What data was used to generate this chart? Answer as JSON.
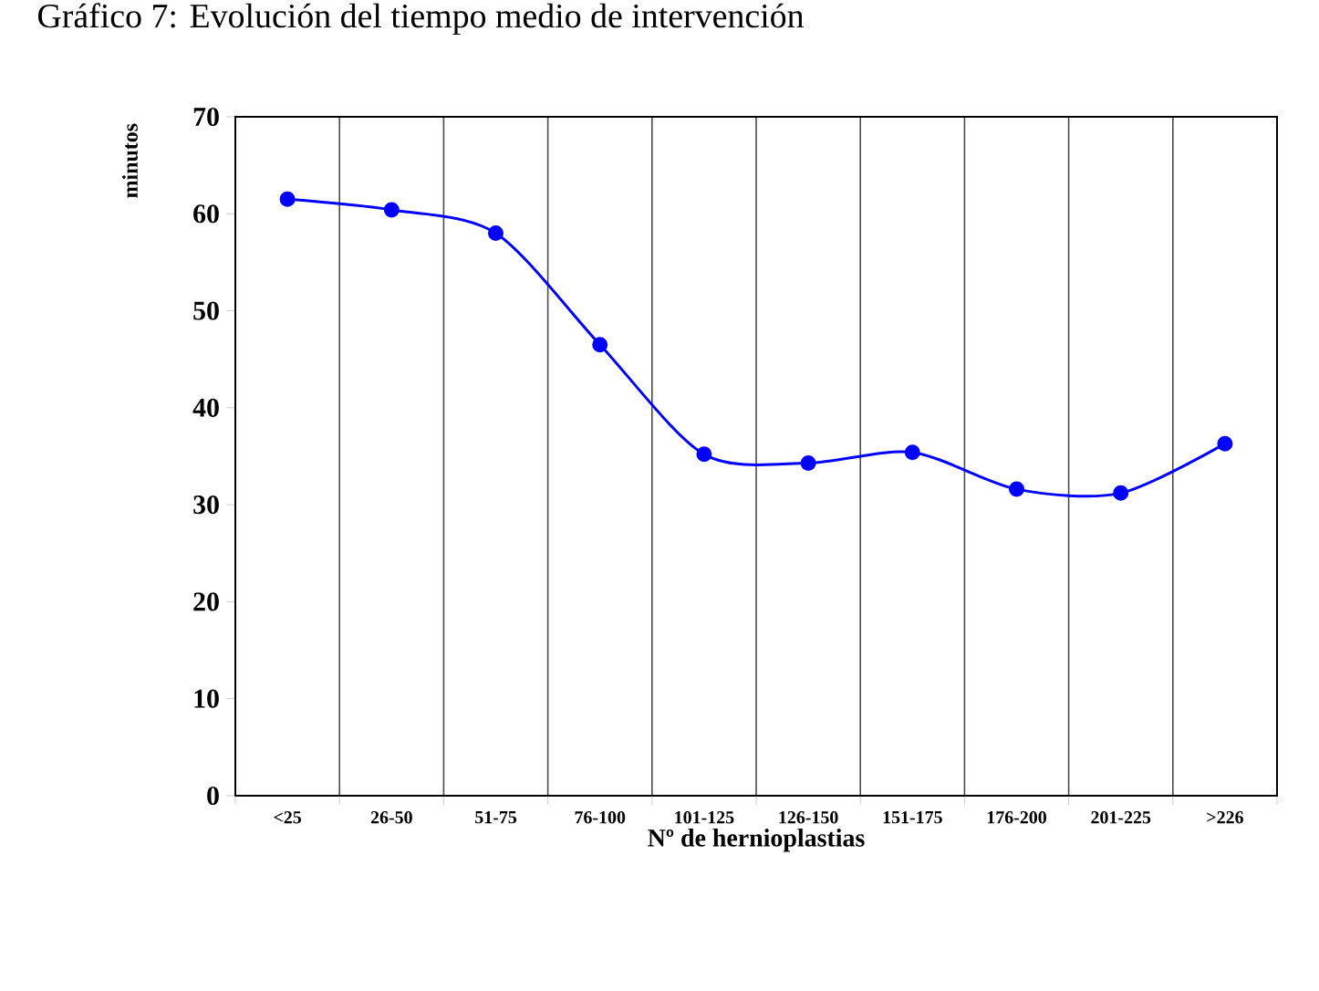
{
  "chart_data": {
    "type": "line",
    "title": "Gráfico 7: Evolución del tiempo medio de intervención",
    "xlabel": "Nº de hernioplastias",
    "ylabel": "minutos",
    "categories": [
      "<25",
      "26-50",
      "51-75",
      "76-100",
      "101-125",
      "126-150",
      "151-175",
      "176-200",
      "201-225",
      ">226"
    ],
    "series": [
      {
        "color": "#0000ff",
        "values": [
          61.5,
          60.4,
          58.0,
          46.5,
          35.2,
          34.3,
          35.4,
          31.6,
          31.2,
          36.3
        ]
      }
    ],
    "ylim": [
      0,
      70
    ],
    "yticks": [
      0,
      10,
      20,
      30,
      40,
      50,
      60,
      70
    ],
    "grid": "x",
    "marker": "circle",
    "line_style": "solid"
  }
}
